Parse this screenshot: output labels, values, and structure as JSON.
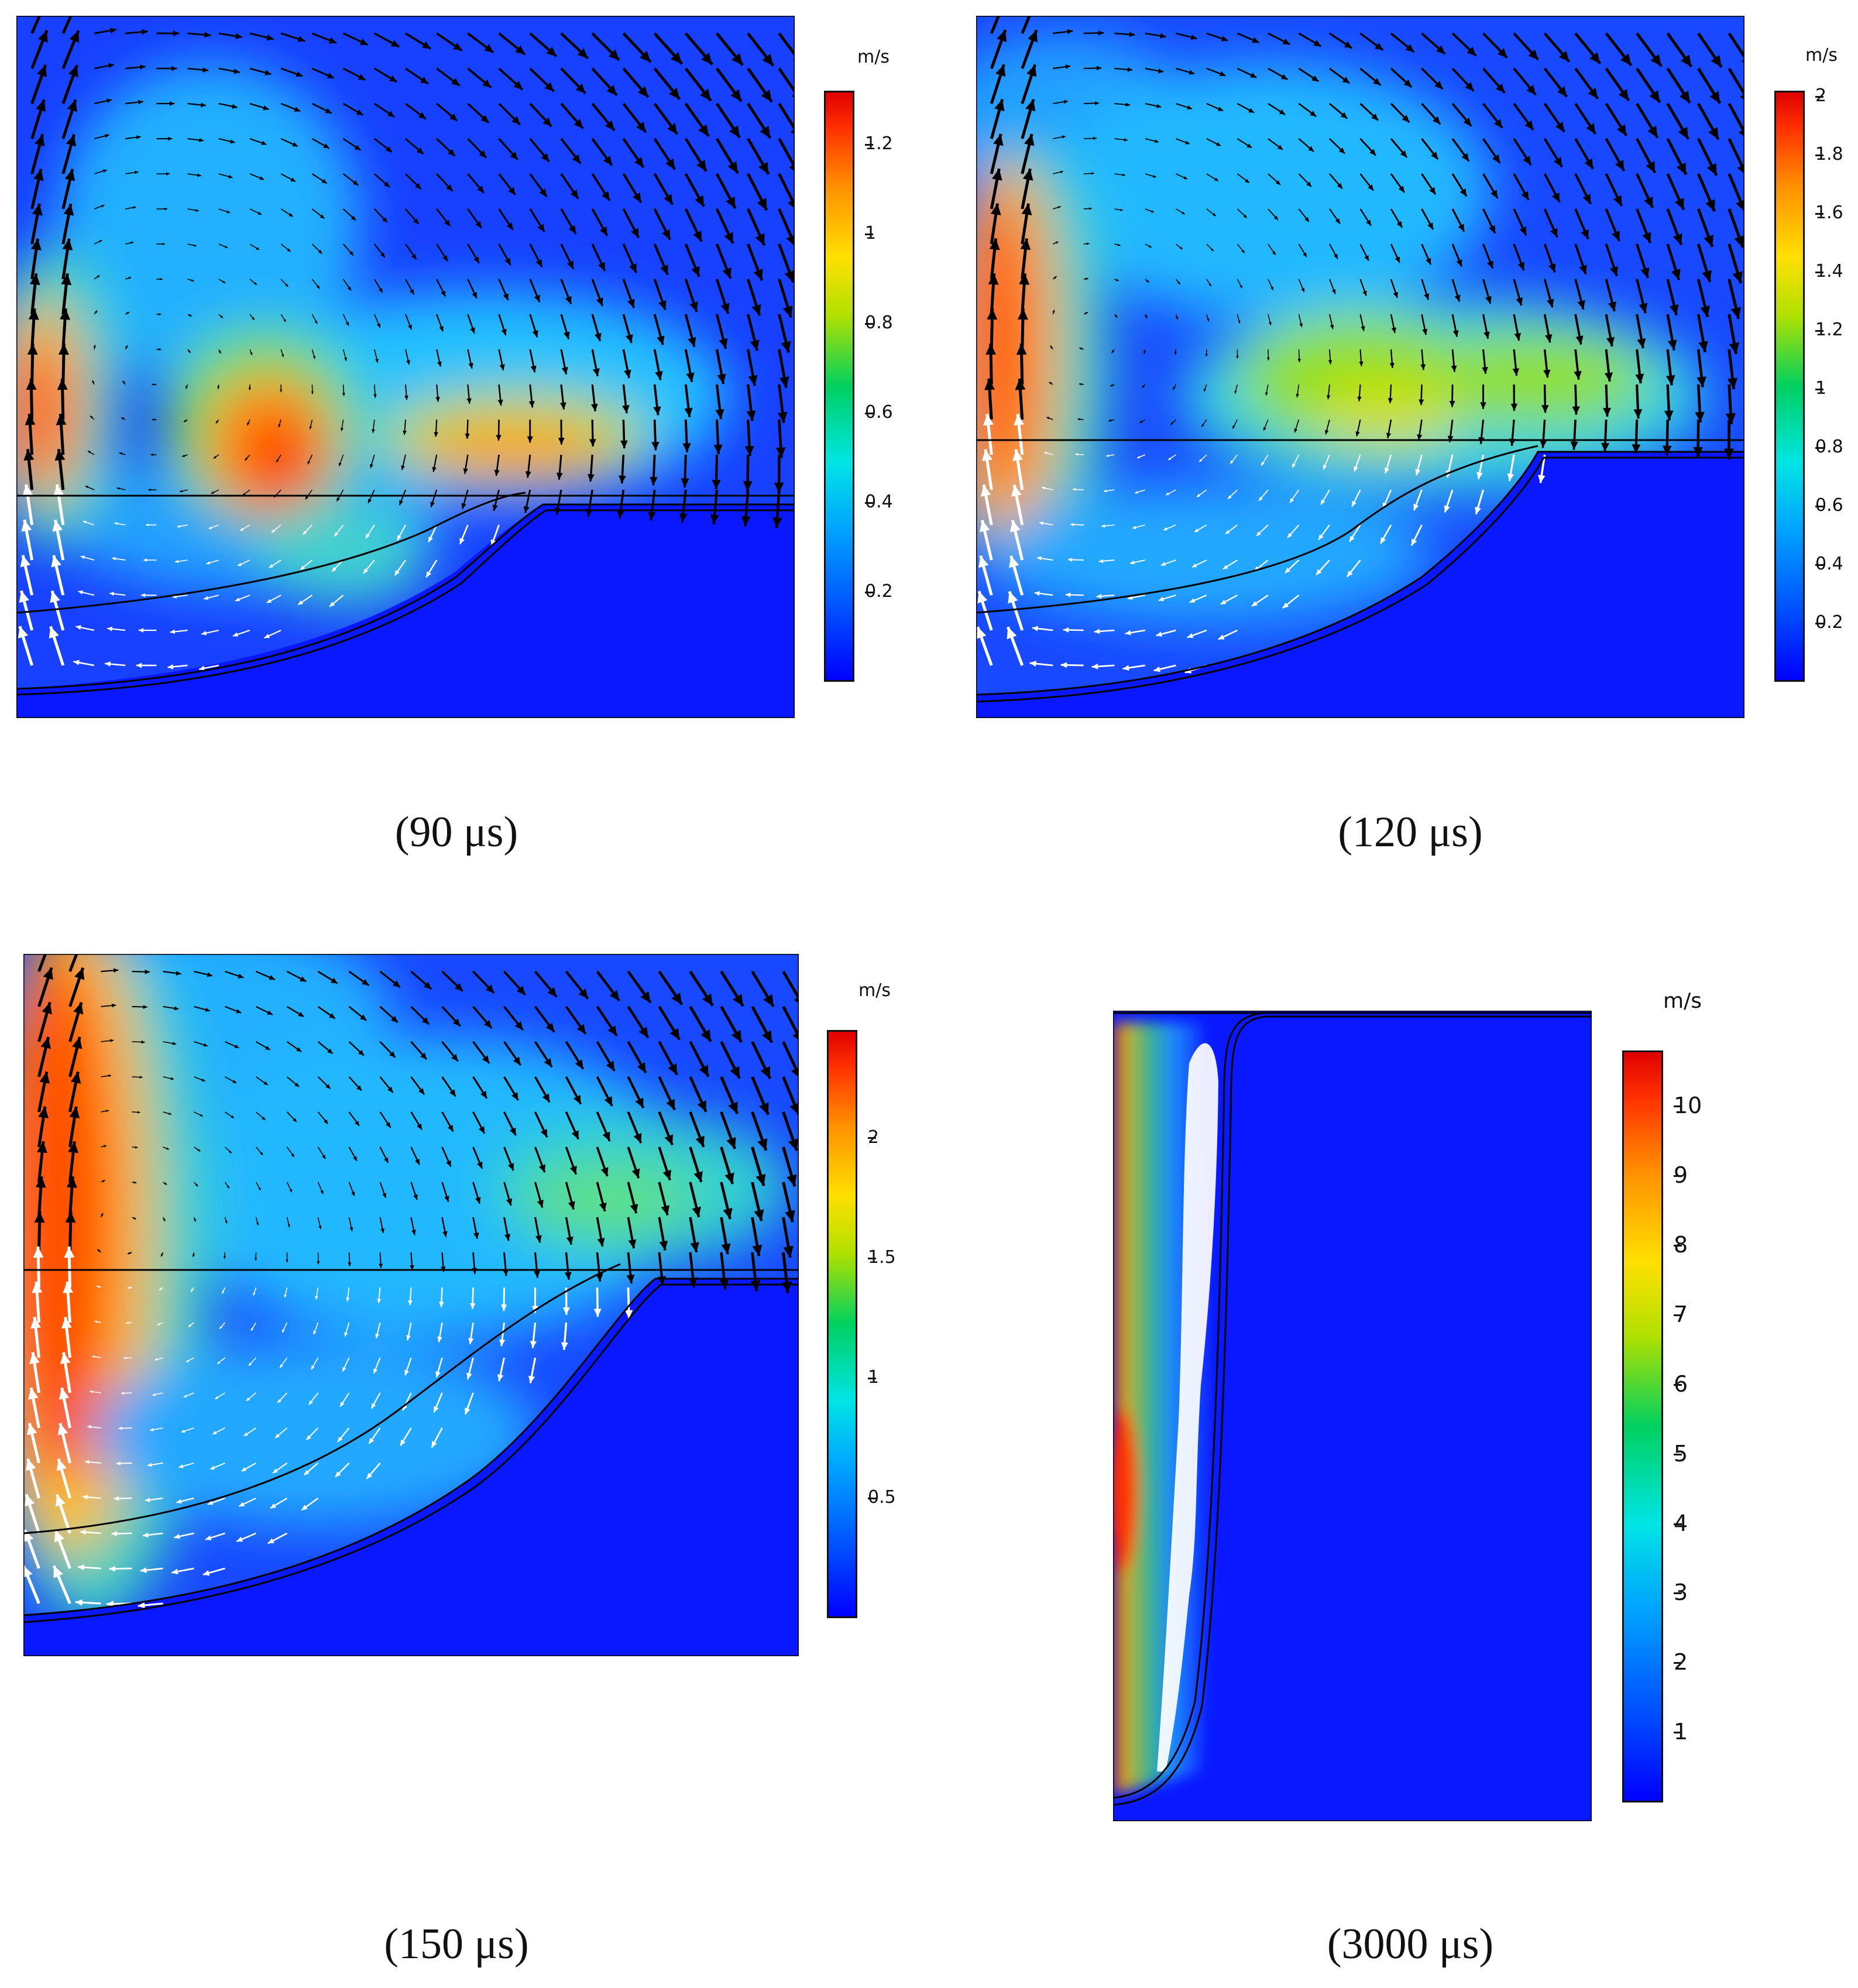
{
  "figure": {
    "panels": [
      {
        "id": "p90",
        "caption": "(90 μs)",
        "unit": "m/s",
        "colorbar": {
          "min": 0,
          "max": 1.32,
          "ticks": [
            "0.2",
            "0.4",
            "0.6",
            "0.8",
            "1",
            "1.2"
          ],
          "tick_values": [
            0.2,
            0.4,
            0.6,
            0.8,
            1.0,
            1.2
          ]
        }
      },
      {
        "id": "p120",
        "caption": "(120 μs)",
        "unit": "m/s",
        "colorbar": {
          "min": 0,
          "max": 2.02,
          "ticks": [
            "0.2",
            "0.4",
            "0.6",
            "0.8",
            "1",
            "1.2",
            "1.4",
            "1.6",
            "1.8",
            "2"
          ],
          "tick_values": [
            0.2,
            0.4,
            0.6,
            0.8,
            1.0,
            1.2,
            1.4,
            1.6,
            1.8,
            2.0
          ]
        }
      },
      {
        "id": "p150",
        "caption": "(150 μs)",
        "unit": "m/s",
        "colorbar": {
          "min": 0,
          "max": 2.45,
          "ticks": [
            "0.5",
            "1",
            "1.5",
            "2"
          ],
          "tick_values": [
            0.5,
            1.0,
            1.5,
            2.0
          ]
        }
      },
      {
        "id": "p3000",
        "caption": "(3000 μs)",
        "unit": "m/s",
        "colorbar": {
          "min": 0,
          "max": 10.8,
          "ticks": [
            "1",
            "2",
            "3",
            "4",
            "5",
            "6",
            "7",
            "8",
            "9",
            "10"
          ],
          "tick_values": [
            1,
            2,
            3,
            4,
            5,
            6,
            7,
            8,
            9,
            10
          ]
        }
      }
    ]
  },
  "colors": {
    "background_low": "#0000ff",
    "peak": "#e00000",
    "arrow_air": "#000000",
    "arrow_melt": "#ffffff"
  },
  "chart_data": [
    {
      "type": "heatmap",
      "title": "",
      "colorbar_label": "m/s",
      "colorbar_range": [
        0,
        1.32
      ],
      "colorbar_ticks": [
        0.2,
        0.4,
        0.6,
        0.8,
        1.0,
        1.2
      ],
      "caption": "(90 μs)"
    },
    {
      "type": "heatmap",
      "title": "",
      "colorbar_label": "m/s",
      "colorbar_range": [
        0,
        2.02
      ],
      "colorbar_ticks": [
        0.2,
        0.4,
        0.6,
        0.8,
        1.0,
        1.2,
        1.4,
        1.6,
        1.8,
        2.0
      ],
      "caption": "(120 μs)"
    },
    {
      "type": "heatmap",
      "title": "",
      "colorbar_label": "m/s",
      "colorbar_range": [
        0,
        2.45
      ],
      "colorbar_ticks": [
        0.5,
        1.0,
        1.5,
        2.0
      ],
      "caption": "(150 μs)"
    },
    {
      "type": "heatmap",
      "title": "",
      "colorbar_label": "m/s",
      "colorbar_range": [
        0,
        10.8
      ],
      "colorbar_ticks": [
        1,
        2,
        3,
        4,
        5,
        6,
        7,
        8,
        9,
        10
      ],
      "caption": "(3000 μs)"
    }
  ]
}
